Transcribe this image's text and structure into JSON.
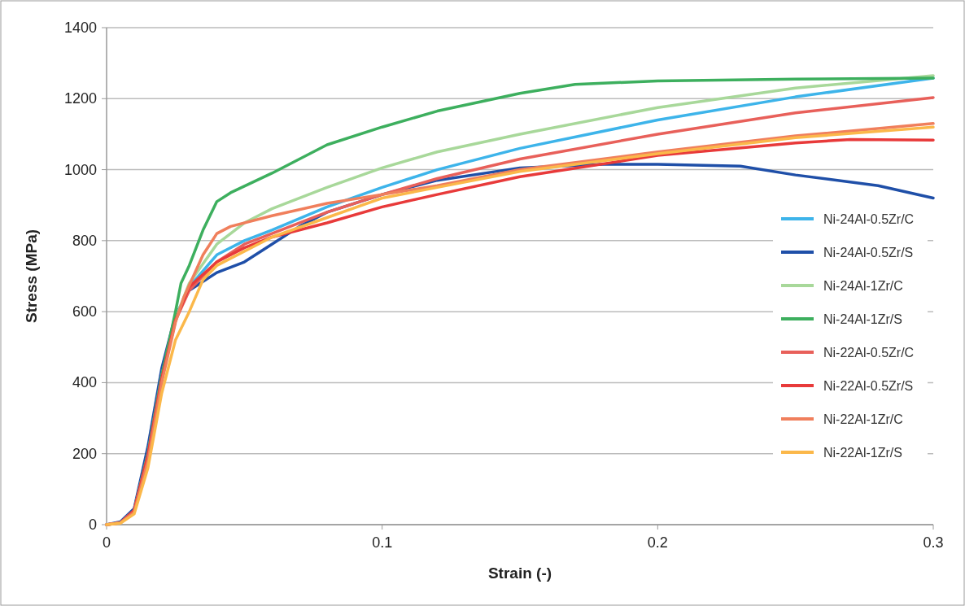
{
  "chart_data": {
    "type": "line",
    "xlabel": "Strain (-)",
    "ylabel": "Stress (MPa)",
    "xlim": [
      0,
      0.3
    ],
    "ylim": [
      0,
      1400
    ],
    "xticks": [
      0,
      0.1,
      0.2,
      0.3
    ],
    "yticks": [
      0,
      200,
      400,
      600,
      800,
      1000,
      1200,
      1400
    ],
    "grid": "y",
    "legend": "right",
    "marker": "none",
    "line_style": "solid",
    "series": [
      {
        "name": "Ni-24Al-0.5Zr/C",
        "color": "#3db4ea",
        "x": [
          0,
          0.005,
          0.01,
          0.015,
          0.02,
          0.025,
          0.03,
          0.04,
          0.05,
          0.06,
          0.08,
          0.1,
          0.12,
          0.15,
          0.2,
          0.25,
          0.3
        ],
        "values": [
          0,
          5,
          40,
          200,
          420,
          580,
          670,
          760,
          800,
          830,
          895,
          950,
          1000,
          1060,
          1140,
          1205,
          1258
        ]
      },
      {
        "name": "Ni-24Al-0.5Zr/S",
        "color": "#1f4fa8",
        "x": [
          0,
          0.005,
          0.01,
          0.015,
          0.02,
          0.025,
          0.03,
          0.04,
          0.05,
          0.06,
          0.07,
          0.08,
          0.1,
          0.12,
          0.15,
          0.18,
          0.2,
          0.23,
          0.25,
          0.28,
          0.3
        ],
        "values": [
          0,
          8,
          45,
          220,
          440,
          590,
          660,
          710,
          740,
          790,
          840,
          880,
          930,
          970,
          1005,
          1015,
          1015,
          1010,
          985,
          955,
          920
        ]
      },
      {
        "name": "Ni-24Al-1Zr/C",
        "color": "#a8d89a",
        "x": [
          0,
          0.005,
          0.01,
          0.015,
          0.02,
          0.025,
          0.03,
          0.04,
          0.05,
          0.06,
          0.08,
          0.1,
          0.12,
          0.15,
          0.2,
          0.25,
          0.3
        ],
        "values": [
          0,
          5,
          40,
          200,
          420,
          580,
          680,
          790,
          850,
          890,
          950,
          1005,
          1050,
          1100,
          1175,
          1230,
          1265
        ]
      },
      {
        "name": "Ni-24Al-1Zr/S",
        "color": "#3daf5e",
        "x": [
          0.01,
          0.015,
          0.02,
          0.025,
          0.027,
          0.03,
          0.035,
          0.04,
          0.045,
          0.06,
          0.08,
          0.1,
          0.12,
          0.15,
          0.17,
          0.2,
          0.25,
          0.3
        ],
        "values": [
          40,
          200,
          420,
          600,
          680,
          730,
          830,
          910,
          935,
          990,
          1070,
          1120,
          1165,
          1215,
          1240,
          1250,
          1255,
          1258
        ]
      },
      {
        "name": "Ni-22Al-0.5Zr/C",
        "color": "#e8605a",
        "x": [
          0,
          0.005,
          0.01,
          0.015,
          0.02,
          0.025,
          0.03,
          0.04,
          0.05,
          0.06,
          0.08,
          0.1,
          0.12,
          0.15,
          0.2,
          0.25,
          0.3
        ],
        "values": [
          0,
          5,
          40,
          195,
          410,
          575,
          660,
          740,
          790,
          820,
          880,
          930,
          975,
          1030,
          1100,
          1160,
          1203
        ]
      },
      {
        "name": "Ni-22Al-0.5Zr/S",
        "color": "#e83a3a",
        "x": [
          0,
          0.005,
          0.01,
          0.015,
          0.02,
          0.025,
          0.03,
          0.04,
          0.05,
          0.06,
          0.08,
          0.1,
          0.12,
          0.15,
          0.2,
          0.25,
          0.27,
          0.3
        ],
        "values": [
          0,
          5,
          40,
          195,
          410,
          575,
          670,
          740,
          780,
          810,
          850,
          895,
          930,
          980,
          1040,
          1075,
          1085,
          1083
        ]
      },
      {
        "name": "Ni-22Al-1Zr/C",
        "color": "#f07f5c",
        "x": [
          0,
          0.005,
          0.01,
          0.015,
          0.02,
          0.025,
          0.028,
          0.035,
          0.04,
          0.045,
          0.06,
          0.08,
          0.1,
          0.12,
          0.15,
          0.2,
          0.25,
          0.3
        ],
        "values": [
          0,
          5,
          35,
          180,
          400,
          570,
          640,
          760,
          820,
          840,
          870,
          905,
          930,
          955,
          1000,
          1050,
          1095,
          1130
        ]
      },
      {
        "name": "Ni-22Al-1Zr/S",
        "color": "#fbb84a",
        "x": [
          0,
          0.005,
          0.01,
          0.015,
          0.02,
          0.025,
          0.03,
          0.035,
          0.04,
          0.06,
          0.08,
          0.1,
          0.12,
          0.15,
          0.2,
          0.25,
          0.3
        ],
        "values": [
          0,
          4,
          30,
          160,
          370,
          520,
          600,
          690,
          730,
          810,
          865,
          920,
          950,
          995,
          1045,
          1090,
          1120
        ]
      }
    ]
  }
}
